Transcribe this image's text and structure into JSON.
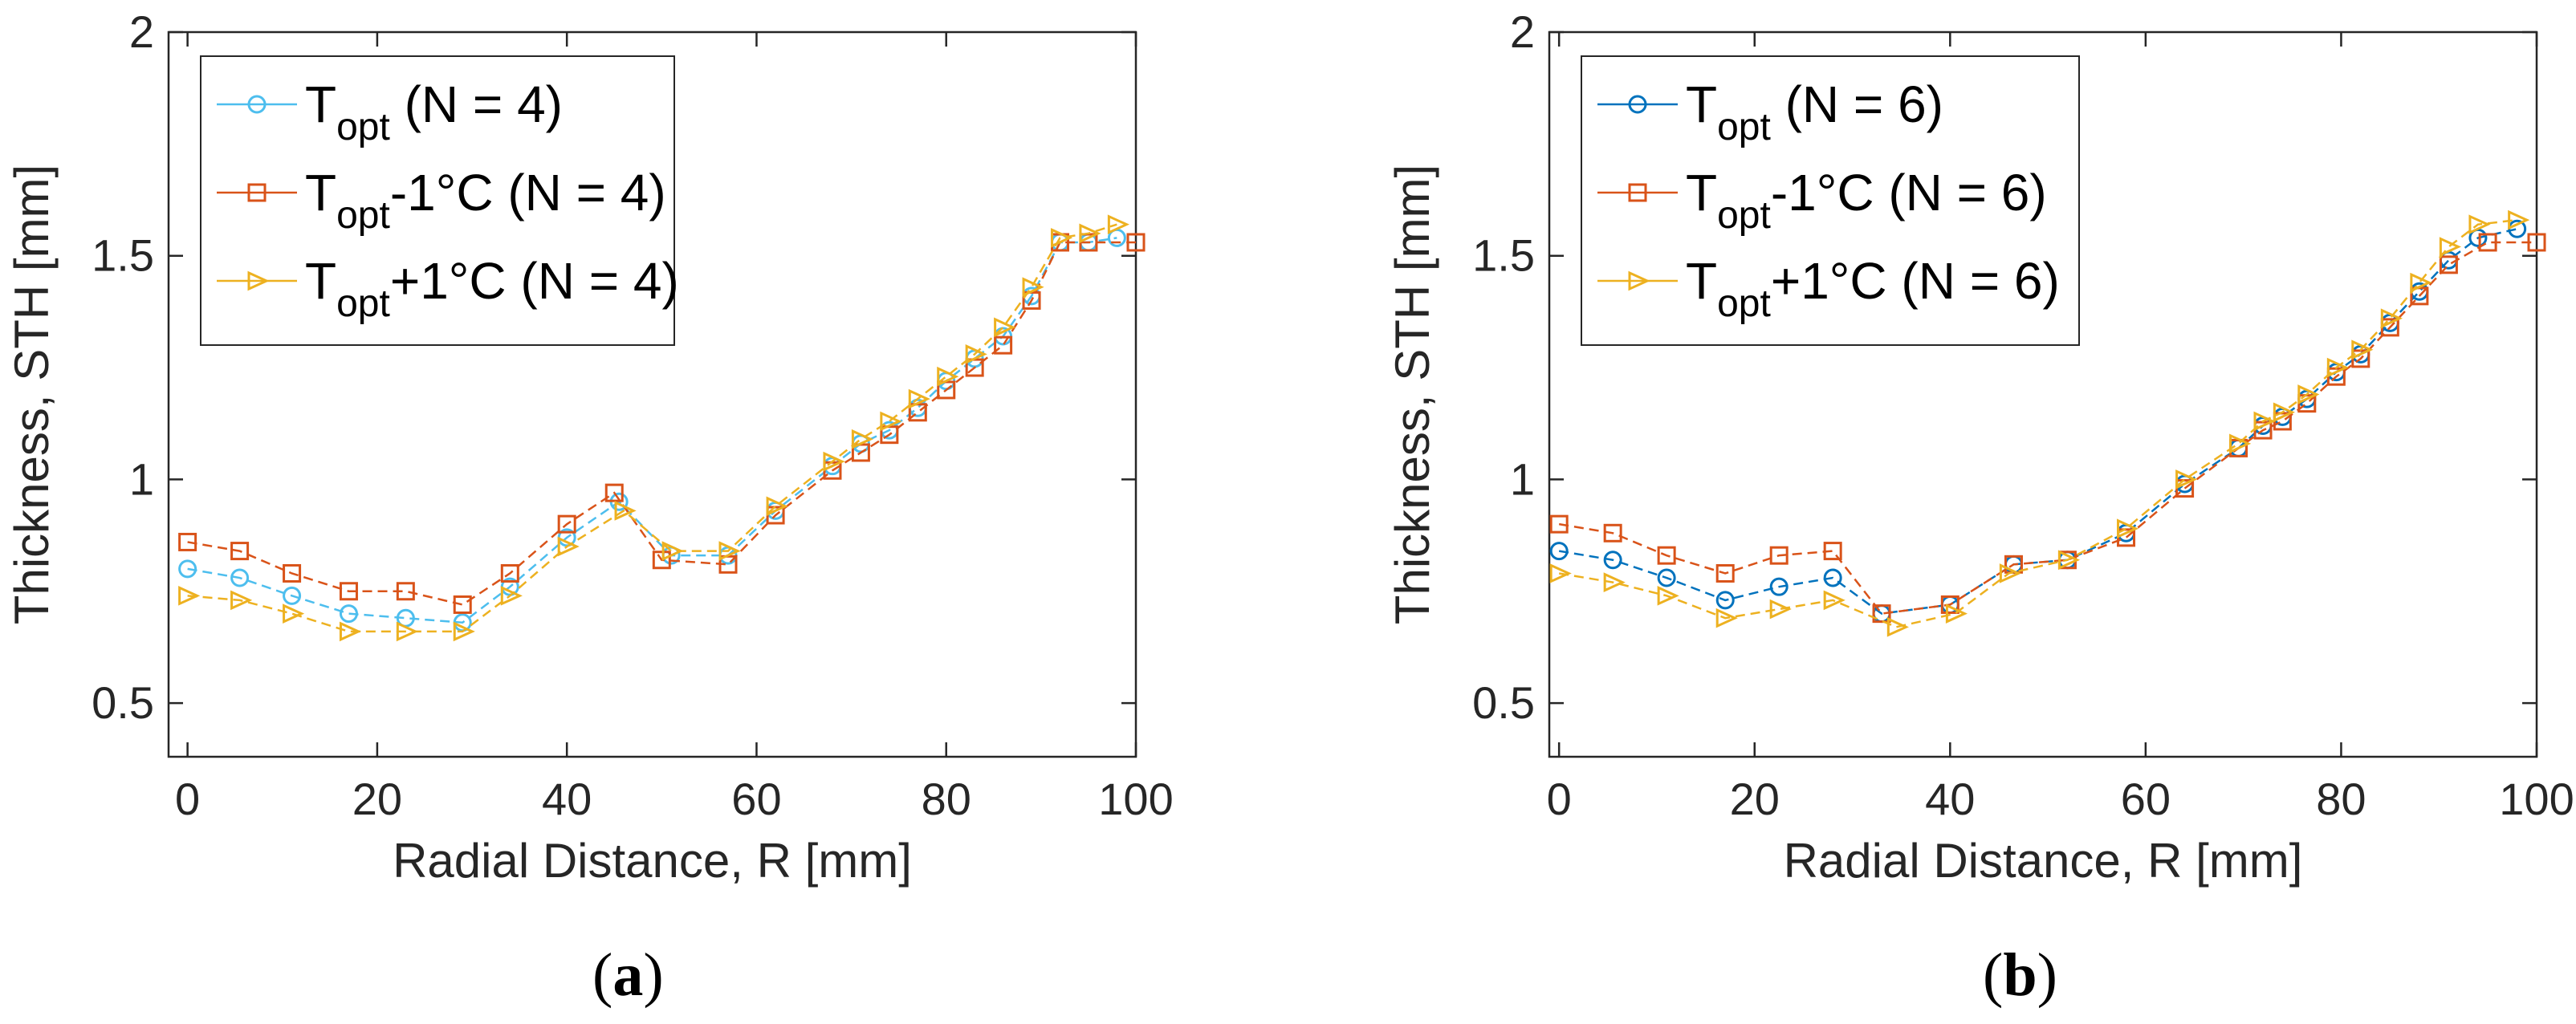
{
  "chart_data": [
    {
      "type": "line",
      "panel_label": "a",
      "xlabel": "Radial Distance, R [mm]",
      "ylabel": "Thickness, STH [mm]",
      "xlim": [
        -2,
        100
      ],
      "ylim": [
        0.38,
        2
      ],
      "x_ticks": [
        "0",
        "20",
        "40",
        "60",
        "80",
        "100"
      ],
      "y_ticks": [
        "0.5",
        "1",
        "1.5",
        "2"
      ],
      "legend_position": "top-left",
      "series": [
        {
          "name": "T",
          "sub": "opt",
          "suffix": " (N = 4)",
          "color": "#4DBEEE",
          "marker": "circle",
          "x": [
            0,
            5.5,
            11,
            17,
            23,
            29,
            34,
            40,
            45.5,
            51,
            57,
            62,
            68,
            71,
            74,
            77,
            80,
            83,
            86,
            89,
            92,
            95,
            98
          ],
          "y": [
            0.8,
            0.78,
            0.74,
            0.7,
            0.69,
            0.68,
            0.76,
            0.87,
            0.95,
            0.83,
            0.83,
            0.93,
            1.03,
            1.08,
            1.11,
            1.16,
            1.22,
            1.27,
            1.32,
            1.41,
            1.53,
            1.53,
            1.54
          ]
        },
        {
          "name": "T",
          "sub": "opt",
          "suffix": "-1°C (N = 4)",
          "color": "#D95319",
          "marker": "square",
          "x": [
            0,
            5.5,
            11,
            17,
            23,
            29,
            34,
            40,
            45,
            50,
            57,
            62,
            68,
            71,
            74,
            77,
            80,
            83,
            86,
            89,
            92,
            95,
            100
          ],
          "y": [
            0.86,
            0.84,
            0.79,
            0.75,
            0.75,
            0.72,
            0.79,
            0.9,
            0.97,
            0.82,
            0.81,
            0.92,
            1.02,
            1.06,
            1.1,
            1.15,
            1.2,
            1.25,
            1.3,
            1.4,
            1.53,
            1.53,
            1.53
          ]
        },
        {
          "name": "T",
          "sub": "opt",
          "suffix": "+1°C (N = 4)",
          "color": "#EDB120",
          "marker": "triangle-right",
          "x": [
            0,
            5.5,
            11,
            17,
            23,
            29,
            34,
            40,
            46,
            51,
            57,
            62,
            68,
            71,
            74,
            77,
            80,
            83,
            86,
            89,
            92,
            95,
            98
          ],
          "y": [
            0.74,
            0.73,
            0.7,
            0.66,
            0.66,
            0.66,
            0.74,
            0.85,
            0.93,
            0.84,
            0.84,
            0.94,
            1.04,
            1.09,
            1.13,
            1.18,
            1.23,
            1.28,
            1.34,
            1.43,
            1.54,
            1.55,
            1.57
          ]
        }
      ]
    },
    {
      "type": "line",
      "panel_label": "b",
      "xlabel": "Radial Distance, R [mm]",
      "ylabel": "Thickness, STH [mm]",
      "xlim": [
        -1,
        100
      ],
      "ylim": [
        0.38,
        2
      ],
      "x_ticks": [
        "0",
        "20",
        "40",
        "60",
        "80",
        "100"
      ],
      "y_ticks": [
        "0.5",
        "1",
        "1.5",
        "2"
      ],
      "legend_position": "top-left",
      "series": [
        {
          "name": "T",
          "sub": "opt",
          "suffix": " (N = 6)",
          "color": "#0072BD",
          "marker": "circle",
          "x": [
            0,
            5.5,
            11,
            17,
            22.5,
            28,
            33,
            40,
            46.5,
            52,
            58,
            64,
            69.5,
            72,
            74,
            76.5,
            79.5,
            82,
            85,
            88,
            91,
            94,
            98
          ],
          "y": [
            0.84,
            0.82,
            0.78,
            0.73,
            0.76,
            0.78,
            0.7,
            0.72,
            0.81,
            0.82,
            0.88,
            0.99,
            1.07,
            1.12,
            1.14,
            1.18,
            1.24,
            1.28,
            1.35,
            1.42,
            1.49,
            1.54,
            1.56
          ]
        },
        {
          "name": "T",
          "sub": "opt",
          "suffix": "-1°C (N = 6)",
          "color": "#D95319",
          "marker": "square",
          "x": [
            0,
            5.5,
            11,
            17,
            22.5,
            28,
            33,
            40,
            46.5,
            52,
            58,
            64,
            69.5,
            72,
            74,
            76.5,
            79.5,
            82,
            85,
            88,
            91,
            95,
            100
          ],
          "y": [
            0.9,
            0.88,
            0.83,
            0.79,
            0.83,
            0.84,
            0.7,
            0.72,
            0.81,
            0.82,
            0.87,
            0.98,
            1.07,
            1.11,
            1.13,
            1.17,
            1.23,
            1.27,
            1.34,
            1.41,
            1.48,
            1.53,
            1.53
          ]
        },
        {
          "name": "T",
          "sub": "opt",
          "suffix": "+1°C (N = 6)",
          "color": "#EDB120",
          "marker": "triangle-right",
          "x": [
            0,
            5.5,
            11,
            17,
            22.5,
            28,
            34.5,
            40.5,
            46,
            52,
            58,
            64,
            69.5,
            72,
            74,
            76.5,
            79.5,
            82,
            85,
            88,
            91,
            94,
            98
          ],
          "y": [
            0.79,
            0.77,
            0.74,
            0.69,
            0.71,
            0.73,
            0.67,
            0.7,
            0.79,
            0.82,
            0.89,
            1.0,
            1.08,
            1.13,
            1.15,
            1.19,
            1.25,
            1.29,
            1.36,
            1.44,
            1.52,
            1.57,
            1.58
          ]
        }
      ]
    }
  ]
}
